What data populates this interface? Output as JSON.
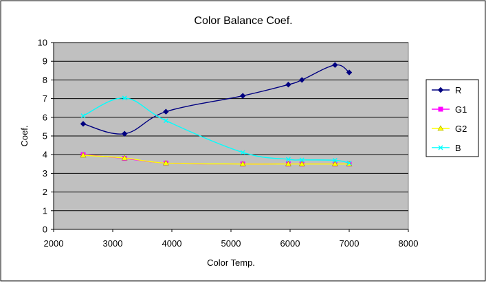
{
  "chart_data": {
    "type": "line",
    "title": "Color Balance Coef.",
    "xlabel": "Color Temp.",
    "ylabel": "Coef.",
    "xlim": [
      2000,
      8000
    ],
    "ylim": [
      0,
      10
    ],
    "x_ticks": [
      2000,
      3000,
      4000,
      5000,
      6000,
      7000,
      8000
    ],
    "y_ticks": [
      0,
      1,
      2,
      3,
      4,
      5,
      6,
      7,
      8,
      9,
      10
    ],
    "grid": true,
    "plot_background": "#c0c0c0",
    "legend_position": "right",
    "series": [
      {
        "name": "R",
        "color": "#000080",
        "marker": "diamond",
        "x": [
          2500,
          3200,
          3900,
          5200,
          5970,
          6200,
          6760,
          7000
        ],
        "y": [
          5.65,
          5.12,
          6.3,
          7.15,
          7.75,
          8.0,
          8.8,
          8.4
        ]
      },
      {
        "name": "G1",
        "color": "#ff00ff",
        "marker": "square",
        "x": [
          2500,
          3200,
          3900,
          5200,
          5970,
          6200,
          6760,
          7000
        ],
        "y": [
          4.0,
          3.8,
          3.55,
          3.5,
          3.5,
          3.5,
          3.5,
          3.5
        ]
      },
      {
        "name": "G2",
        "color": "#ffff00",
        "marker": "triangle",
        "x": [
          2500,
          3200,
          3900,
          5200,
          5970,
          6200,
          6760,
          7000
        ],
        "y": [
          3.97,
          3.82,
          3.55,
          3.5,
          3.5,
          3.5,
          3.5,
          3.5
        ]
      },
      {
        "name": "B",
        "color": "#00ffff",
        "marker": "x",
        "x": [
          2500,
          3200,
          3900,
          5200,
          5970,
          6200,
          6760,
          7000
        ],
        "y": [
          6.08,
          7.03,
          5.82,
          4.12,
          3.75,
          3.72,
          3.7,
          3.55
        ]
      }
    ]
  }
}
